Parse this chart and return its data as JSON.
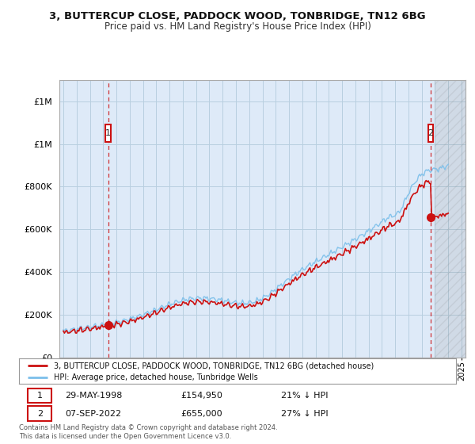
{
  "title": "3, BUTTERCUP CLOSE, PADDOCK WOOD, TONBRIDGE, TN12 6BG",
  "subtitle": "Price paid vs. HM Land Registry's House Price Index (HPI)",
  "legend_line1": "3, BUTTERCUP CLOSE, PADDOCK WOOD, TONBRIDGE, TN12 6BG (detached house)",
  "legend_line2": "HPI: Average price, detached house, Tunbridge Wells",
  "footnote": "Contains HM Land Registry data © Crown copyright and database right 2024.\nThis data is licensed under the Open Government Licence v3.0.",
  "annotation1_date": "29-MAY-1998",
  "annotation1_price": "£154,950",
  "annotation1_hpi": "21% ↓ HPI",
  "annotation2_date": "07-SEP-2022",
  "annotation2_price": "£655,000",
  "annotation2_hpi": "27% ↓ HPI",
  "hpi_color": "#7bbfea",
  "price_color": "#cc1111",
  "background_color": "#ffffff",
  "plot_bg_color": "#deeaf8",
  "grid_color": "#b8cfe0",
  "ylim": [
    0,
    1300000
  ],
  "yticks": [
    0,
    200000,
    400000,
    600000,
    800000,
    1000000,
    1200000
  ],
  "t1": 1998.37,
  "t2": 2022.67,
  "price1": 154950,
  "price2": 655000,
  "data_end": 2024.0,
  "xlim_left": 1994.7,
  "xlim_right": 2025.3
}
